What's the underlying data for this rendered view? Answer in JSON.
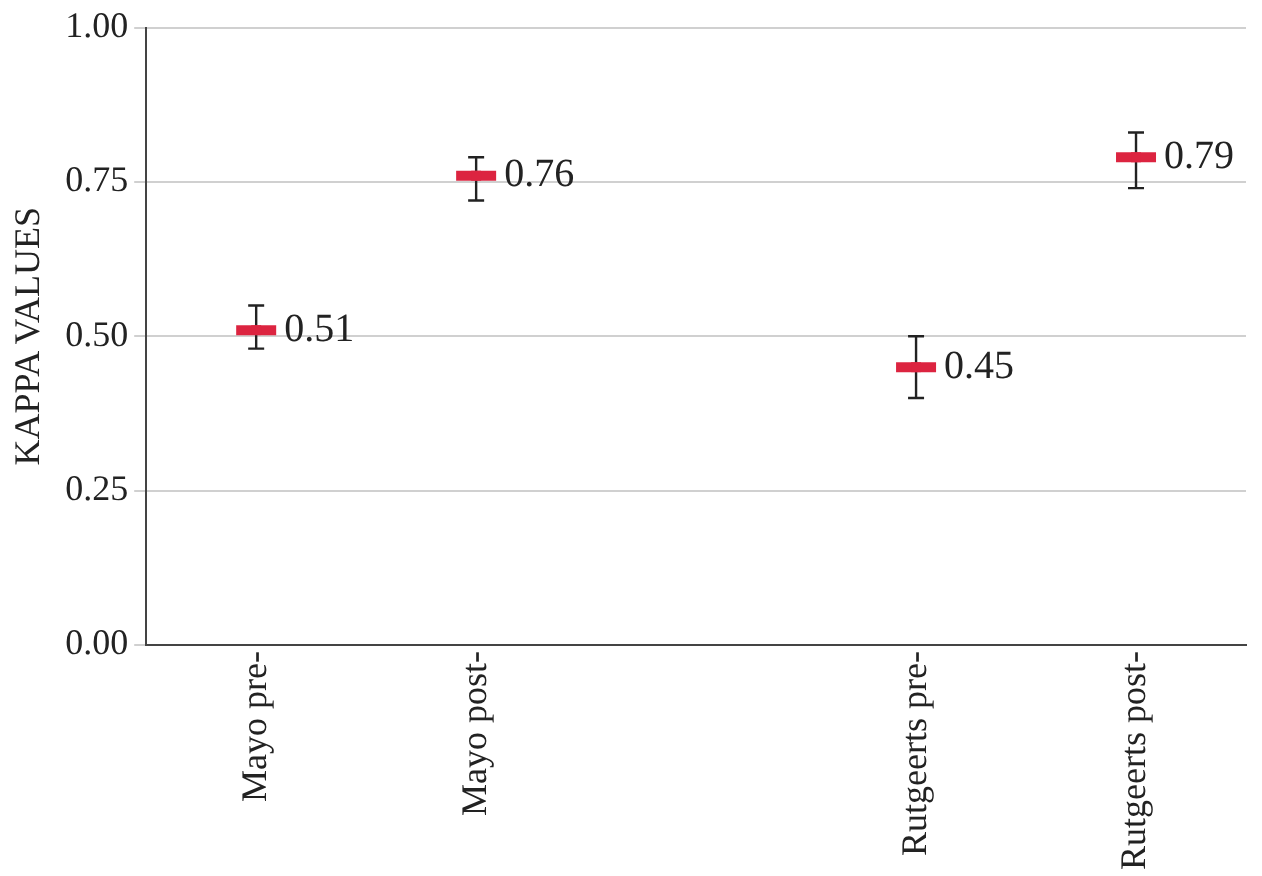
{
  "chart_data": {
    "type": "scatter",
    "ylabel": "KAPPA VALUES",
    "categories": [
      "Mayo pre-",
      "Mayo post-",
      null,
      "Rutgeerts pre-",
      "Rutgeerts post-"
    ],
    "values": [
      0.51,
      0.76,
      null,
      0.45,
      0.79
    ],
    "errors": [
      [
        0.48,
        0.55
      ],
      [
        0.72,
        0.79
      ],
      null,
      [
        0.4,
        0.5
      ],
      [
        0.74,
        0.83
      ]
    ],
    "color": "#dc2440",
    "ylim": [
      0,
      1
    ],
    "yticks": [
      {
        "value": 0,
        "label": "0.00"
      },
      {
        "value": 0.25,
        "label": "0.25"
      },
      {
        "value": 0.5,
        "label": "0.50"
      },
      {
        "value": 0.75,
        "label": "0.75"
      },
      {
        "value": 1,
        "label": "1.00"
      }
    ],
    "grid": "y",
    "data_labels": true
  }
}
